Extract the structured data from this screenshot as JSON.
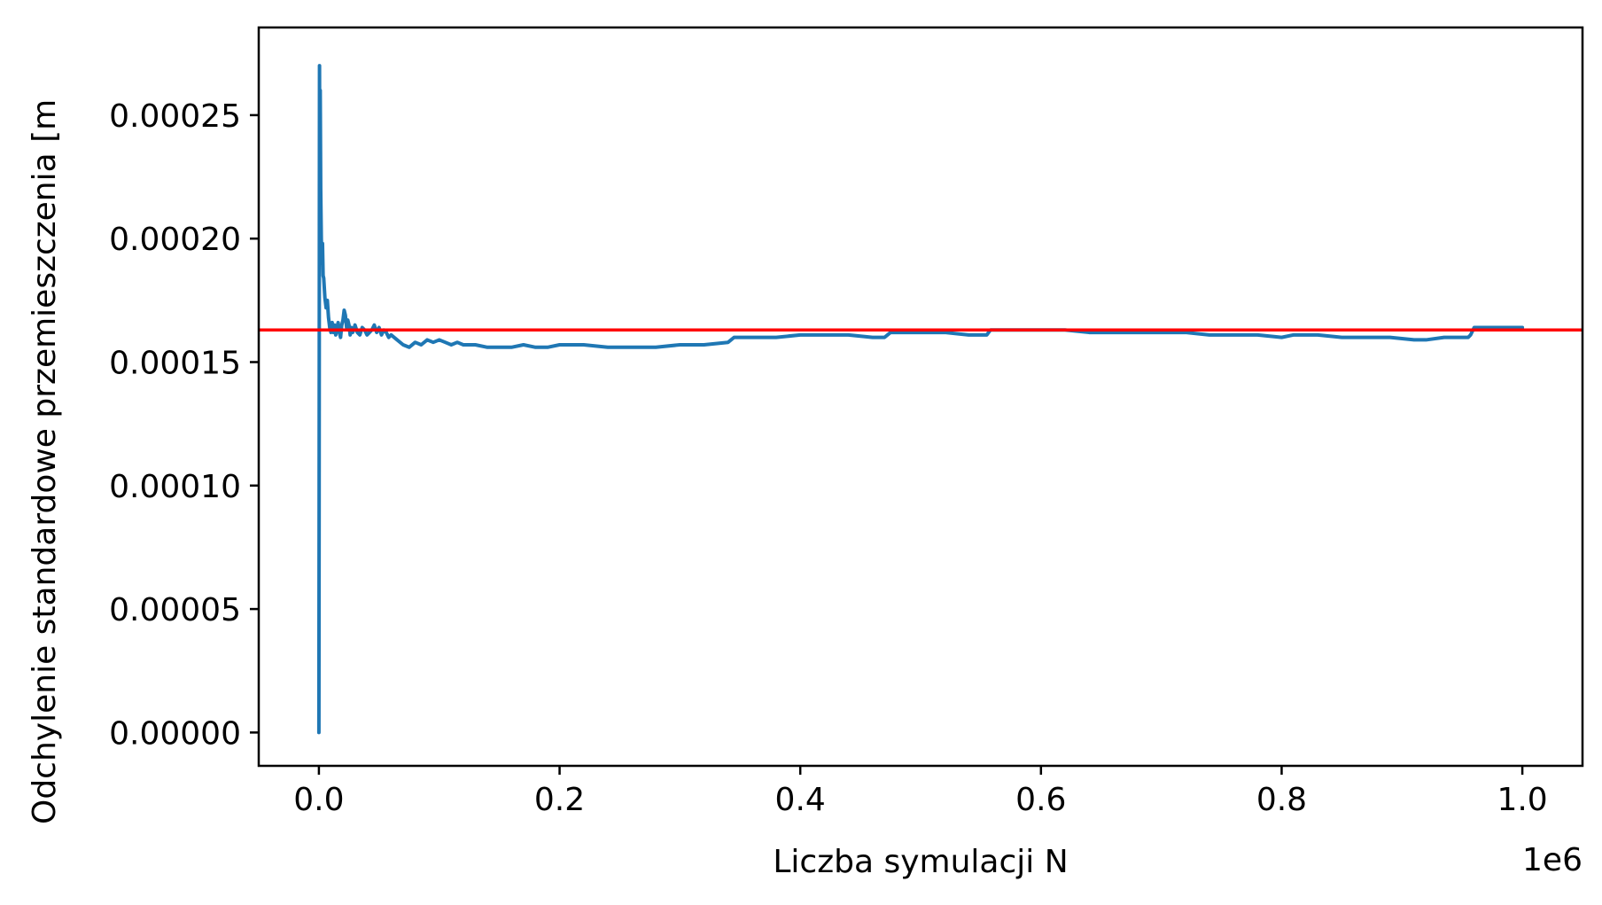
{
  "chart_data": {
    "type": "line",
    "title": "",
    "xlabel": "Liczba symulacji N",
    "ylabel": "Odchylenie standardowe przemieszczenia [m",
    "x_offset_label": "1e6",
    "xlim": [
      -50000,
      1050000
    ],
    "ylim": [
      -1.35e-05,
      0.0002855
    ],
    "x_ticks": [
      0,
      200000,
      400000,
      600000,
      800000,
      1000000
    ],
    "x_tick_labels": [
      "0.0",
      "0.2",
      "0.4",
      "0.6",
      "0.8",
      "1.0"
    ],
    "y_ticks": [
      0.0,
      5e-05,
      0.0001,
      0.00015,
      0.0002,
      0.00025
    ],
    "y_tick_labels": [
      "0.00000",
      "0.00005",
      "0.00010",
      "0.00015",
      "0.00020",
      "0.00025"
    ],
    "grid": false,
    "legend": "none",
    "colors": {
      "series": "#1f77b4",
      "reference_line": "#ff0000",
      "axes": "#000000"
    },
    "series": [
      {
        "x": [
          1,
          200,
          500,
          800,
          1100,
          1500,
          2000,
          2500,
          3000,
          3500,
          4000,
          5000,
          6000,
          7000,
          8000,
          9000,
          10000,
          11000,
          12000,
          13000,
          14000,
          15000,
          16000,
          17000,
          18000,
          19000,
          20000,
          21000,
          22000,
          23000,
          24000,
          25000,
          26000,
          27000,
          28000,
          29000,
          30000,
          32000,
          34000,
          36000,
          38000,
          40000,
          42000,
          44000,
          46000,
          48000,
          50000,
          52000,
          54000,
          56000,
          58000,
          60000,
          65000,
          70000,
          75000,
          80000,
          85000,
          90000,
          95000,
          100000,
          105000,
          110000,
          115000,
          120000,
          130000,
          140000,
          150000,
          160000,
          170000,
          180000,
          190000,
          200000,
          220000,
          240000,
          260000,
          280000,
          300000,
          320000,
          340000,
          345000,
          360000,
          380000,
          400000,
          420000,
          440000,
          460000,
          470000,
          475000,
          500000,
          520000,
          540000,
          555000,
          558000,
          580000,
          600000,
          620000,
          640000,
          660000,
          680000,
          700000,
          720000,
          740000,
          760000,
          780000,
          800000,
          810000,
          830000,
          850000,
          870000,
          890000,
          910000,
          920000,
          935000,
          950000,
          955000,
          957000,
          960000,
          970000,
          980000,
          990000,
          1000000
        ],
        "y": [
          0.0,
          0.0001,
          0.00027,
          0.00021,
          0.00026,
          0.00022,
          0.0002,
          0.00019,
          0.000198,
          0.000185,
          0.000184,
          0.000176,
          0.000172,
          0.000175,
          0.000168,
          0.000164,
          0.000162,
          0.000166,
          0.000162,
          0.000165,
          0.000161,
          0.000164,
          0.000166,
          0.000162,
          0.00016,
          0.000165,
          0.000167,
          0.000171,
          0.000169,
          0.000164,
          0.000167,
          0.000165,
          0.000161,
          0.000164,
          0.000162,
          0.000163,
          0.000165,
          0.000162,
          0.000161,
          0.000164,
          0.000163,
          0.000161,
          0.000162,
          0.000163,
          0.000165,
          0.000162,
          0.000164,
          0.000161,
          0.000163,
          0.000162,
          0.00016,
          0.000161,
          0.000159,
          0.000157,
          0.000156,
          0.000158,
          0.000157,
          0.000159,
          0.000158,
          0.000159,
          0.000158,
          0.000157,
          0.000158,
          0.000157,
          0.000157,
          0.000156,
          0.000156,
          0.000156,
          0.000157,
          0.000156,
          0.000156,
          0.000157,
          0.000157,
          0.000156,
          0.000156,
          0.000156,
          0.000157,
          0.000157,
          0.000158,
          0.00016,
          0.00016,
          0.00016,
          0.000161,
          0.000161,
          0.000161,
          0.00016,
          0.00016,
          0.000162,
          0.000162,
          0.000162,
          0.000161,
          0.000161,
          0.000163,
          0.000163,
          0.000163,
          0.000163,
          0.000162,
          0.000162,
          0.000162,
          0.000162,
          0.000162,
          0.000161,
          0.000161,
          0.000161,
          0.00016,
          0.000161,
          0.000161,
          0.00016,
          0.00016,
          0.00016,
          0.000159,
          0.000159,
          0.00016,
          0.00016,
          0.00016,
          0.000161,
          0.000164,
          0.000164,
          0.000164,
          0.000164,
          0.000164
        ]
      },
      {
        "x": [
          -50000,
          1050000
        ],
        "y": [
          0.000163,
          0.000163
        ]
      }
    ]
  }
}
